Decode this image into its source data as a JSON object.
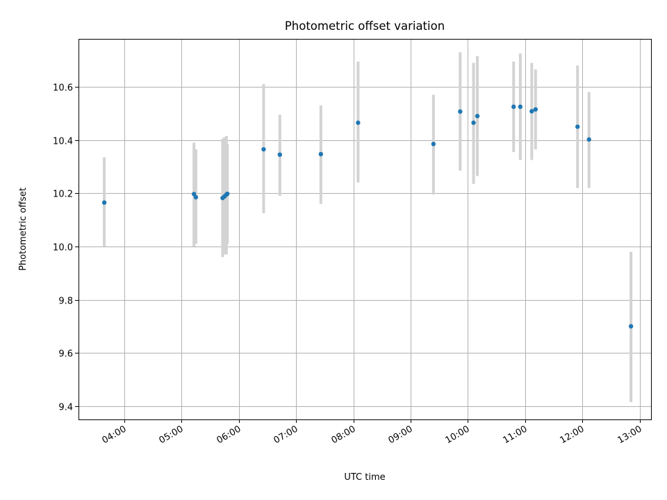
{
  "chart_data": {
    "type": "scatter",
    "title": "Photometric offset variation",
    "xlabel": "UTC time",
    "ylabel": "Photometric offset",
    "x_axis": "time",
    "xlim": [
      "03:12",
      "13:12"
    ],
    "ylim": [
      9.35,
      10.78
    ],
    "xticks": [
      "04:00",
      "05:00",
      "06:00",
      "07:00",
      "08:00",
      "09:00",
      "10:00",
      "11:00",
      "12:00",
      "13:00"
    ],
    "yticks": [
      "9.4",
      "9.6",
      "9.8",
      "10.0",
      "10.2",
      "10.4",
      "10.6"
    ],
    "ytick_values": [
      9.4,
      9.6,
      9.8,
      10.0,
      10.2,
      10.4,
      10.6
    ],
    "grid": true,
    "legend": "none",
    "colors": {
      "points": "#1f77b4",
      "errorbars": "#d3d3d3",
      "grid": "#b0b0b0"
    },
    "points": [
      {
        "t": "03:39",
        "y": 10.165,
        "ylo": 10.0,
        "yhi": 10.335
      },
      {
        "t": "05:13",
        "y": 10.197,
        "ylo": 10.0,
        "yhi": 10.39
      },
      {
        "t": "05:15",
        "y": 10.185,
        "ylo": 10.01,
        "yhi": 10.365
      },
      {
        "t": "05:43",
        "y": 10.182,
        "ylo": 9.96,
        "yhi": 10.405
      },
      {
        "t": "05:45",
        "y": 10.188,
        "ylo": 9.97,
        "yhi": 10.41
      },
      {
        "t": "05:47",
        "y": 10.195,
        "ylo": 9.97,
        "yhi": 10.415
      },
      {
        "t": "05:48",
        "y": 10.198,
        "ylo": 10.01,
        "yhi": 10.385
      },
      {
        "t": "06:26",
        "y": 10.365,
        "ylo": 10.125,
        "yhi": 10.61
      },
      {
        "t": "06:43",
        "y": 10.345,
        "ylo": 10.19,
        "yhi": 10.495
      },
      {
        "t": "07:26",
        "y": 10.347,
        "ylo": 10.16,
        "yhi": 10.53
      },
      {
        "t": "08:05",
        "y": 10.465,
        "ylo": 10.24,
        "yhi": 10.695
      },
      {
        "t": "09:24",
        "y": 10.385,
        "ylo": 10.195,
        "yhi": 10.57
      },
      {
        "t": "09:52",
        "y": 10.507,
        "ylo": 10.285,
        "yhi": 10.73
      },
      {
        "t": "10:06",
        "y": 10.465,
        "ylo": 10.235,
        "yhi": 10.69
      },
      {
        "t": "10:10",
        "y": 10.49,
        "ylo": 10.265,
        "yhi": 10.715
      },
      {
        "t": "10:48",
        "y": 10.525,
        "ylo": 10.355,
        "yhi": 10.695
      },
      {
        "t": "10:55",
        "y": 10.525,
        "ylo": 10.325,
        "yhi": 10.725
      },
      {
        "t": "11:07",
        "y": 10.508,
        "ylo": 10.325,
        "yhi": 10.69
      },
      {
        "t": "11:11",
        "y": 10.515,
        "ylo": 10.365,
        "yhi": 10.665
      },
      {
        "t": "11:55",
        "y": 10.45,
        "ylo": 10.22,
        "yhi": 10.68
      },
      {
        "t": "12:07",
        "y": 10.402,
        "ylo": 10.22,
        "yhi": 10.58
      },
      {
        "t": "12:51",
        "y": 9.7,
        "ylo": 9.415,
        "yhi": 9.98
      }
    ]
  }
}
